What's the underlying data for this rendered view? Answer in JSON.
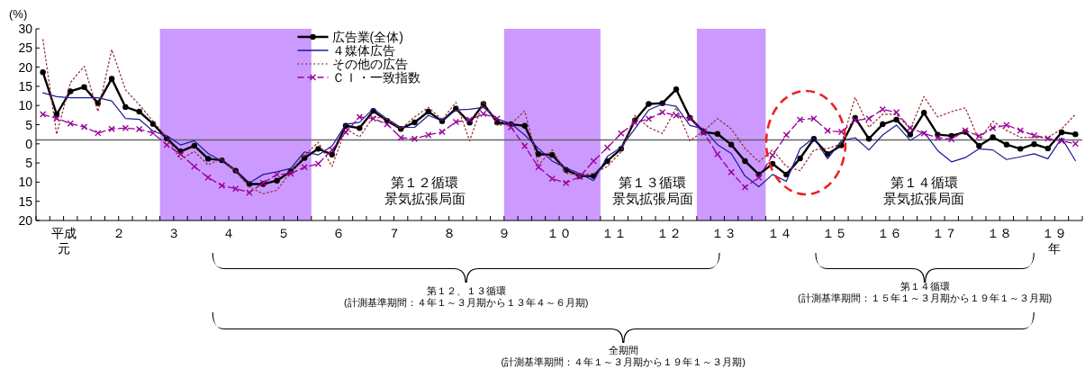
{
  "chart_data": {
    "type": "line",
    "ylabel": "(%)",
    "xlim": [
      1,
      20
    ],
    "ylim": [
      -20,
      30
    ],
    "yticks": [
      {
        "value": -20,
        "label": "20"
      },
      {
        "value": -15,
        "label": "15"
      },
      {
        "value": -10,
        "label": "10"
      },
      {
        "value": -5,
        "label": "5"
      },
      0,
      5,
      10,
      15,
      20,
      25,
      30
    ],
    "xticks": [
      {
        "value": 1,
        "label": null
      },
      {
        "value": 1.25,
        "label": null
      },
      {
        "value": 1.5,
        "label": "平成元"
      },
      {
        "value": 1.75,
        "label": null
      },
      {
        "value": 2,
        "label": null
      },
      {
        "value": 2.25,
        "label": null
      },
      {
        "value": 2.5,
        "label": "２"
      },
      {
        "value": 2.75,
        "label": null
      },
      {
        "value": 3,
        "label": null
      },
      {
        "value": 3.25,
        "label": null
      },
      {
        "value": 3.5,
        "label": "３"
      },
      {
        "value": 3.75,
        "label": null
      },
      {
        "value": 4,
        "label": null
      },
      {
        "value": 4.25,
        "label": null
      },
      {
        "value": 4.5,
        "label": "４"
      },
      {
        "value": 4.75,
        "label": null
      },
      {
        "value": 5,
        "label": null
      },
      {
        "value": 5.25,
        "label": null
      },
      {
        "value": 5.5,
        "label": "５"
      },
      {
        "value": 5.75,
        "label": null
      },
      {
        "value": 6,
        "label": null
      },
      {
        "value": 6.25,
        "label": null
      },
      {
        "value": 6.5,
        "label": "６"
      },
      {
        "value": 6.75,
        "label": null
      },
      {
        "value": 7,
        "label": null
      },
      {
        "value": 7.25,
        "label": null
      },
      {
        "value": 7.5,
        "label": "７"
      },
      {
        "value": 7.75,
        "label": null
      },
      {
        "value": 8,
        "label": null
      },
      {
        "value": 8.25,
        "label": null
      },
      {
        "value": 8.5,
        "label": "８"
      },
      {
        "value": 8.75,
        "label": null
      },
      {
        "value": 9,
        "label": null
      },
      {
        "value": 9.25,
        "label": null
      },
      {
        "value": 9.5,
        "label": "９"
      },
      {
        "value": 9.75,
        "label": null
      },
      {
        "value": 10,
        "label": null
      },
      {
        "value": 10.25,
        "label": null
      },
      {
        "value": 10.5,
        "label": "１０"
      },
      {
        "value": 10.75,
        "label": null
      },
      {
        "value": 11,
        "label": null
      },
      {
        "value": 11.25,
        "label": null
      },
      {
        "value": 11.5,
        "label": "１１"
      },
      {
        "value": 11.75,
        "label": null
      },
      {
        "value": 12,
        "label": null
      },
      {
        "value": 12.25,
        "label": null
      },
      {
        "value": 12.5,
        "label": "１２"
      },
      {
        "value": 12.75,
        "label": null
      },
      {
        "value": 13,
        "label": null
      },
      {
        "value": 13.25,
        "label": null
      },
      {
        "value": 13.5,
        "label": "１３"
      },
      {
        "value": 13.75,
        "label": null
      },
      {
        "value": 14,
        "label": null
      },
      {
        "value": 14.25,
        "label": null
      },
      {
        "value": 14.5,
        "label": "１４"
      },
      {
        "value": 14.75,
        "label": null
      },
      {
        "value": 15,
        "label": null
      },
      {
        "value": 15.25,
        "label": null
      },
      {
        "value": 15.5,
        "label": "１５"
      },
      {
        "value": 15.75,
        "label": null
      },
      {
        "value": 16,
        "label": null
      },
      {
        "value": 16.25,
        "label": null
      },
      {
        "value": 16.5,
        "label": "１６"
      },
      {
        "value": 16.75,
        "label": null
      },
      {
        "value": 17,
        "label": null
      },
      {
        "value": 17.25,
        "label": null
      },
      {
        "value": 17.5,
        "label": "１７"
      },
      {
        "value": 17.75,
        "label": null
      },
      {
        "value": 18,
        "label": null
      },
      {
        "value": 18.25,
        "label": null
      },
      {
        "value": 18.5,
        "label": "１８"
      },
      {
        "value": 18.75,
        "label": null
      },
      {
        "value": 19,
        "label": null
      },
      {
        "value": 19.25,
        "label": null
      },
      {
        "value": 19.5,
        "label": "１９年"
      },
      {
        "value": 19.75,
        "label": null
      },
      {
        "value": 20,
        "label": null
      }
    ],
    "x": [
      1.125,
      1.375,
      1.625,
      1.875,
      2.125,
      2.375,
      2.625,
      2.875,
      3.125,
      3.375,
      3.625,
      3.875,
      4.125,
      4.375,
      4.625,
      4.875,
      5.125,
      5.375,
      5.625,
      5.875,
      6.125,
      6.375,
      6.625,
      6.875,
      7.125,
      7.375,
      7.625,
      7.875,
      8.125,
      8.375,
      8.625,
      8.875,
      9.125,
      9.375,
      9.625,
      9.875,
      10.125,
      10.375,
      10.625,
      10.875,
      11.125,
      11.375,
      11.625,
      11.875,
      12.125,
      12.375,
      12.625,
      12.875,
      13.125,
      13.375,
      13.625,
      13.875,
      14.125,
      14.375,
      14.625,
      14.875,
      15.125,
      15.375,
      15.625,
      15.875,
      16.125,
      16.375,
      16.625,
      16.875,
      17.125,
      17.375,
      17.625,
      17.875,
      18.125,
      18.375,
      18.625,
      18.875,
      19.125,
      19.375,
      19.625,
      19.875
    ],
    "series": [
      {
        "name": "広告業(全体)",
        "color": "#000000",
        "marker": "circle",
        "line_style": "solid",
        "values": [
          18.7,
          7.7,
          13.7,
          14.8,
          10.6,
          17.0,
          9.6,
          8.4,
          5.2,
          1.4,
          -2.0,
          -0.5,
          -3.9,
          -4.3,
          -7.0,
          -10.5,
          -10.5,
          -9.6,
          -7.2,
          -3.7,
          -1.3,
          -2.8,
          4.7,
          4.1,
          8.6,
          6.0,
          3.9,
          5.6,
          8.4,
          5.9,
          9.2,
          5.5,
          10.4,
          5.6,
          5.1,
          4.7,
          -2.7,
          -2.9,
          -6.8,
          -8.4,
          -8.4,
          -4.5,
          -1.3,
          6.1,
          10.4,
          10.6,
          14.2,
          6.8,
          3.1,
          2.6,
          -0.2,
          -4.5,
          -8.0,
          -5.2,
          -8.0,
          -3.8,
          1.3,
          -2.7,
          -0.4,
          6.8,
          1.3,
          5.1,
          6.3,
          2.4,
          8.1,
          2.4,
          2.1,
          3.1,
          -0.5,
          1.7,
          -0.2,
          -1.3,
          -0.1,
          -1.2,
          3.0,
          2.5
        ]
      },
      {
        "name": "４媒体広告",
        "color": "#1a1a99",
        "marker": "none",
        "line_style": "solid",
        "values": [
          13.3,
          12.3,
          12.0,
          12.0,
          12.0,
          11.2,
          6.6,
          6.4,
          3.3,
          2.1,
          -0.3,
          0.8,
          -2.5,
          -4.5,
          -6.9,
          -10.2,
          -8.0,
          -7.3,
          -6.4,
          -2.1,
          -2.9,
          -0.6,
          5.1,
          5.6,
          9.2,
          6.5,
          4.3,
          4.3,
          7.4,
          6.0,
          8.8,
          9.0,
          9.5,
          6.5,
          5.3,
          2.3,
          -1.2,
          -4.5,
          -6.3,
          -7.8,
          -9.6,
          -3.3,
          -0.9,
          3.9,
          8.8,
          10.4,
          9.8,
          4.8,
          3.9,
          -0.2,
          -2.5,
          -8.4,
          -11.2,
          -8.0,
          -9.8,
          -1.3,
          1.6,
          -3.9,
          0.8,
          1.6,
          -1.6,
          2.3,
          4.9,
          0.9,
          3.1,
          -1.8,
          -4.7,
          -3.6,
          -1.3,
          -1.6,
          -4.1,
          -3.4,
          -2.6,
          -3.9,
          1.5,
          -4.4
        ]
      },
      {
        "name": "その他の広告",
        "color": "#993333",
        "marker": "none",
        "line_style": "dotted",
        "values": [
          27.2,
          2.5,
          16.0,
          20.2,
          8.4,
          24.6,
          14.1,
          10.2,
          5.9,
          1.6,
          -4.1,
          -2.0,
          -5.5,
          -3.8,
          -7.2,
          -11.3,
          -13.0,
          -12.1,
          -7.4,
          -3.1,
          0.4,
          -5.9,
          3.9,
          1.8,
          7.0,
          6.5,
          3.9,
          7.0,
          9.5,
          6.3,
          10.8,
          0.8,
          11.1,
          4.9,
          5.1,
          8.6,
          -5.5,
          -1.6,
          -7.7,
          -8.0,
          -7.8,
          -5.9,
          -2.1,
          7.4,
          4.3,
          2.7,
          9.4,
          0.8,
          3.3,
          6.6,
          3.9,
          -1.2,
          -4.7,
          -1.6,
          -5.9,
          -7.0,
          -1.6,
          -1.2,
          0,
          12.1,
          4.3,
          7.7,
          7.7,
          3.9,
          12.3,
          7.0,
          8.4,
          9.4,
          0.9,
          5.9,
          3.5,
          1.7,
          1.7,
          1.6,
          3.9,
          7.7
        ]
      },
      {
        "name": "ＣＩ・一致指数",
        "color": "#990099",
        "marker": "cross",
        "line_style": "dashed",
        "values": [
          7.7,
          6.6,
          5.3,
          4.4,
          2.8,
          3.9,
          4.1,
          3.8,
          2.8,
          -0.3,
          -2.7,
          -5.9,
          -8.8,
          -10.9,
          -11.7,
          -12.7,
          -10.2,
          -8.0,
          -7.8,
          -6.1,
          -5.2,
          -1.6,
          3.0,
          7.0,
          6.6,
          5.1,
          1.6,
          1.3,
          2.3,
          3.1,
          5.7,
          6.3,
          7.8,
          6.6,
          4.3,
          -0.6,
          -6.1,
          -9.1,
          -10.2,
          -8.6,
          -4.5,
          -1.0,
          2.7,
          5.5,
          6.5,
          8.2,
          7.4,
          6.6,
          2.9,
          -2.7,
          -7.4,
          -11.3,
          -8.8,
          -3.0,
          2.3,
          6.3,
          6.6,
          3.4,
          3.1,
          6.1,
          6.6,
          9.0,
          8.2,
          4.1,
          2.7,
          1.6,
          1.2,
          3.5,
          2.0,
          4.1,
          4.9,
          3.5,
          2.2,
          1.4,
          0.8,
          0
        ]
      }
    ],
    "bands": [
      {
        "axis": "x",
        "from": 3.25,
        "to": 6.0,
        "color": "#cc99ff"
      },
      {
        "axis": "x",
        "from": 9.5,
        "to": 11.25,
        "color": "#cc99ff"
      },
      {
        "axis": "x",
        "from": 13.0,
        "to": 14.25,
        "color": "#cc99ff"
      }
    ],
    "ref_lines": [
      {
        "axis": "y",
        "value": 1,
        "color": "#666666"
      }
    ],
    "legend": "top",
    "annotations": [
      "第１２循環",
      "景気拡張局面",
      "第１３循環",
      "景気拡張局面",
      "第１４循環",
      "景気拡張局面",
      "第１２、１３循環\n(計測基準期間：４年１～３月期から１３年４～６月期)",
      "第１４循環\n(計測基準期間：１５年１～３月期から１９年１～３月期)",
      "全期間\n(計測基準期間：４年１～３月期から１９年１～３月期)"
    ]
  }
}
